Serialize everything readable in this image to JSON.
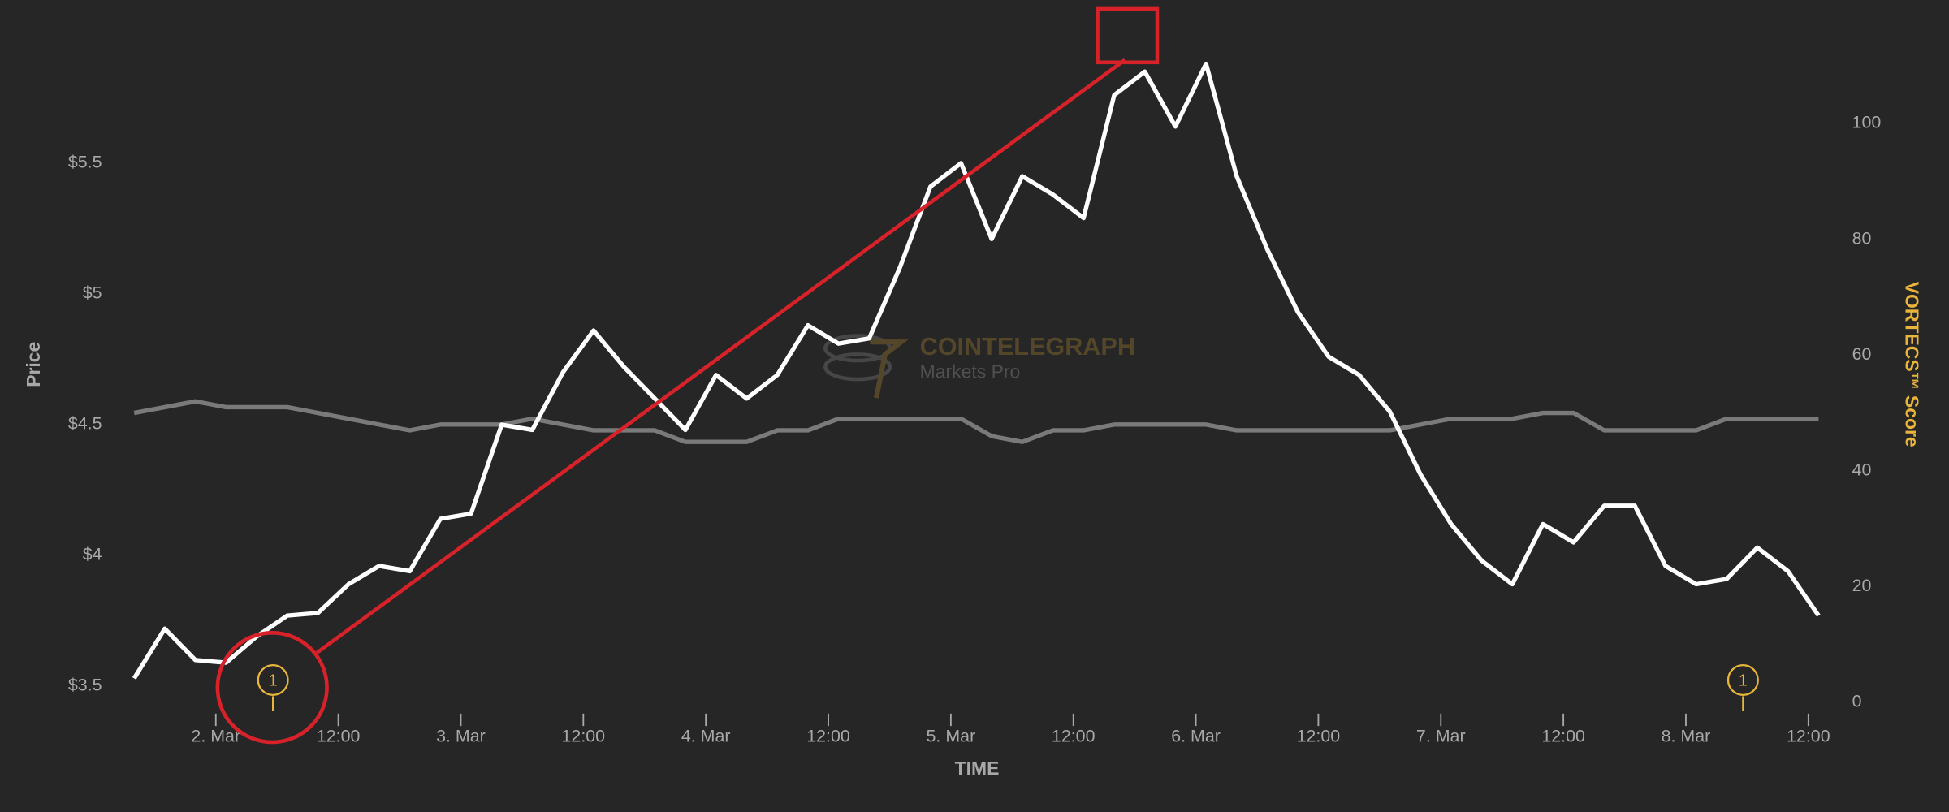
{
  "chart_data": {
    "type": "line",
    "x_label": "TIME",
    "watermark": {
      "title": "COINTELEGRAPH",
      "subtitle": "Markets Pro"
    },
    "x": [
      -8,
      -5,
      -2,
      1,
      4,
      7,
      10,
      13,
      16,
      19,
      22,
      25,
      28,
      31,
      34,
      37,
      40,
      43,
      46,
      49,
      52,
      55,
      58,
      61,
      64,
      67,
      70,
      73,
      76,
      79,
      82,
      85,
      88,
      91,
      94,
      97,
      100,
      103,
      106,
      109,
      112,
      115,
      118,
      121,
      124,
      127,
      130,
      133,
      136,
      139,
      142,
      145,
      148,
      151,
      154,
      157
    ],
    "series": [
      {
        "name": "Price",
        "color": "#ffffff",
        "values": [
          3.53,
          3.72,
          3.6,
          3.59,
          3.69,
          3.77,
          3.78,
          3.89,
          3.96,
          3.94,
          4.14,
          4.16,
          4.5,
          4.48,
          4.7,
          4.86,
          4.72,
          4.6,
          4.48,
          4.69,
          4.6,
          4.69,
          4.88,
          4.81,
          4.83,
          5.1,
          5.41,
          5.5,
          5.21,
          5.45,
          5.38,
          5.29,
          5.76,
          5.85,
          5.64,
          5.88,
          5.45,
          5.17,
          4.93,
          4.76,
          4.69,
          4.55,
          4.31,
          4.12,
          3.98,
          3.89,
          4.12,
          4.05,
          4.19,
          4.19,
          3.96,
          3.89,
          3.91,
          4.03,
          3.94,
          3.77
        ]
      },
      {
        "name": "VORTECS™ Score",
        "color": "#7a7a7a",
        "axis": "y2",
        "values": [
          50,
          51,
          52,
          51,
          51,
          51,
          50,
          49,
          48,
          47,
          48,
          48,
          48,
          49,
          48,
          47,
          47,
          47,
          45,
          45,
          45,
          47,
          47,
          49,
          49,
          49,
          49,
          49,
          46,
          45,
          47,
          47,
          48,
          48,
          48,
          48,
          47,
          47,
          47,
          47,
          47,
          47,
          48,
          49,
          49,
          49,
          50,
          50,
          47,
          47,
          47,
          47,
          49,
          49,
          49,
          49
        ]
      }
    ],
    "xlim": [
      -8.6,
      157.6
    ],
    "xticks": [
      {
        "value": 0,
        "label": "2. Mar"
      },
      {
        "value": 12,
        "label": "12:00"
      },
      {
        "value": 24,
        "label": "3. Mar"
      },
      {
        "value": 36,
        "label": "12:00"
      },
      {
        "value": 48,
        "label": "4. Mar"
      },
      {
        "value": 60,
        "label": "12:00"
      },
      {
        "value": 72,
        "label": "5. Mar"
      },
      {
        "value": 84,
        "label": "12:00"
      },
      {
        "value": 96,
        "label": "6. Mar"
      },
      {
        "value": 108,
        "label": "12:00"
      },
      {
        "value": 120,
        "label": "7. Mar"
      },
      {
        "value": 132,
        "label": "12:00"
      },
      {
        "value": 144,
        "label": "8. Mar"
      },
      {
        "value": 156,
        "label": "12:00"
      }
    ],
    "ylim": [
      3.438,
      6.028
    ],
    "yticks": [
      {
        "value": 3.5,
        "label": "$3.5"
      },
      {
        "value": 4,
        "label": "$4"
      },
      {
        "value": 4.5,
        "label": "$4.5"
      },
      {
        "value": 5,
        "label": "$5"
      },
      {
        "value": 5.5,
        "label": "$5.5"
      }
    ],
    "y2lim": [
      0,
      117
    ],
    "y2ticks": [
      0,
      20,
      40,
      60,
      80,
      100
    ],
    "annotations": [
      {
        "x": 5.6,
        "label": "1"
      },
      {
        "x": 149.6,
        "label": "1"
      }
    ]
  }
}
